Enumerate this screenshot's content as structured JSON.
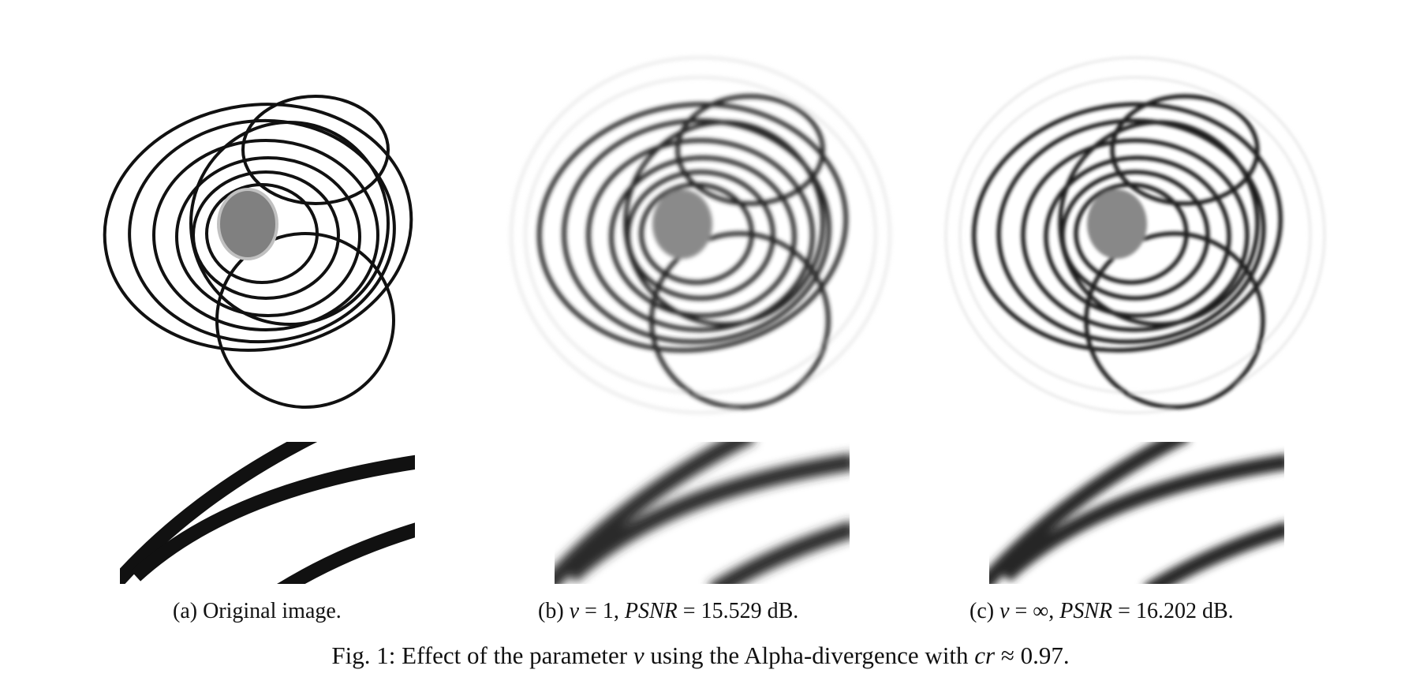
{
  "figure": {
    "label": "Fig. 1:",
    "caption_pre": "Effect of the parameter",
    "caption_symbol": "ν",
    "caption_mid": "using the Alpha-divergence with",
    "caption_var": "cr",
    "caption_rel": "≈",
    "caption_value": "0.97."
  },
  "subfigures": [
    {
      "tag": "(a)",
      "text": "Original image."
    },
    {
      "tag": "(b)",
      "nu_symbol": "ν",
      "nu_eq": "= 1,",
      "psnr_label": "PSNR",
      "psnr_eq": "=",
      "psnr_value": "15.529",
      "unit": "dB."
    },
    {
      "tag": "(c)",
      "nu_symbol": "ν",
      "nu_eq": "= ∞,",
      "psnr_label": "PSNR",
      "psnr_eq": "=",
      "psnr_value": "16.202",
      "unit": "dB."
    }
  ],
  "colors": {
    "ink": "#111111",
    "gray_disk": "#808080",
    "disk_ring": "#c0c0c0"
  }
}
